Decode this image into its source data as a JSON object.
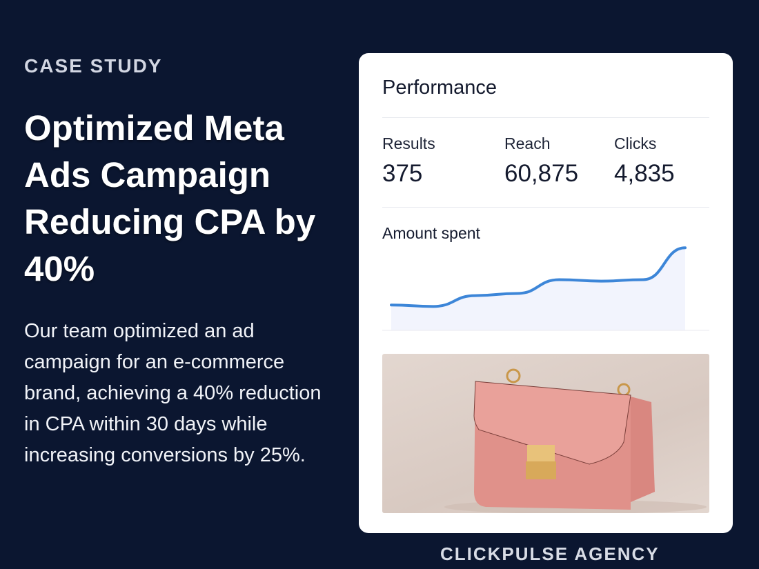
{
  "left": {
    "eyebrow": "CASE STUDY",
    "title": "Optimized Meta Ads Campaign Reducing CPA by 40%",
    "body": "Our team optimized an ad campaign for an e-commerce brand, achieving a 40% reduction in CPA within 30 days while increasing conversions by 25%."
  },
  "card": {
    "title": "Performance",
    "metrics": [
      {
        "label": "Results",
        "value": "375"
      },
      {
        "label": "Reach",
        "value": "60,875"
      },
      {
        "label": "Clicks",
        "value": "4,835"
      }
    ],
    "chart_label": "Amount spent",
    "image_subject": "pink leather crossbody handbag with gold clasp"
  },
  "chart_data": {
    "type": "area",
    "title": "Amount spent",
    "values": [
      35,
      33,
      48,
      51,
      70,
      68,
      70,
      114
    ],
    "line_color": "#3d86d8",
    "fill_color": "#f2f4fd",
    "grid": false
  },
  "footer": "CLICKPULSE AGENCY",
  "colors": {
    "background": "#0b1630",
    "card": "#ffffff",
    "accent": "#3d86d8"
  }
}
